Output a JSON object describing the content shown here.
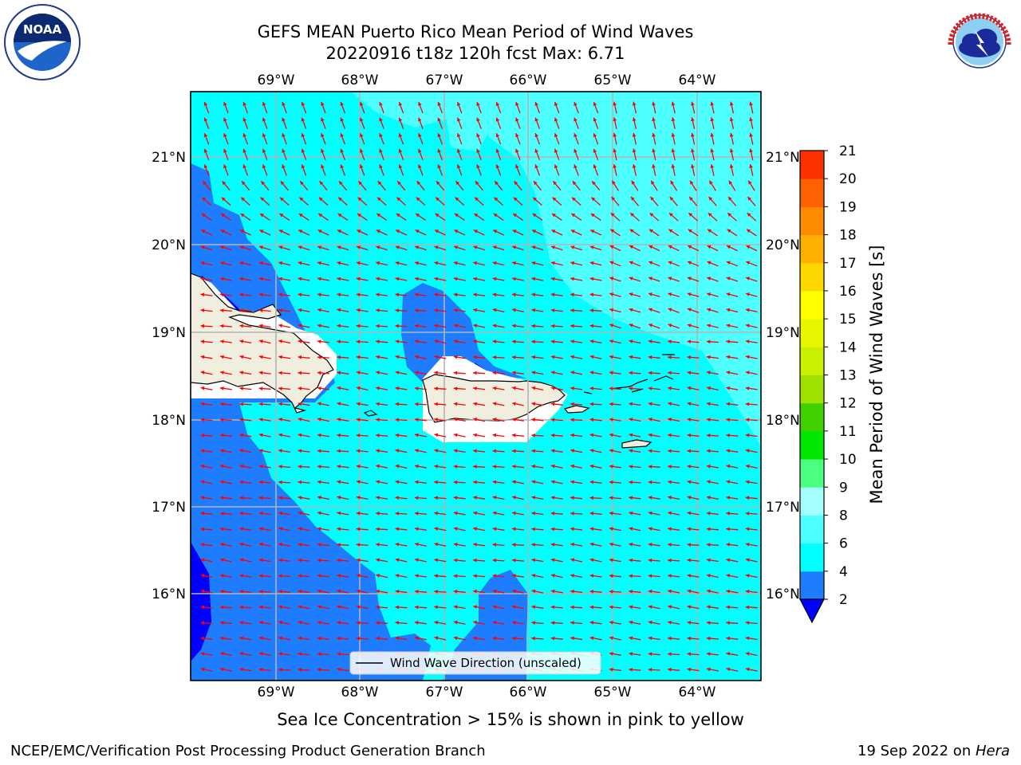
{
  "title": {
    "line1": "GEFS MEAN Puerto Rico Mean Period of Wind Waves",
    "line2": "20220916 t18z 120h fcst   Max: 6.71"
  },
  "logos": {
    "left": {
      "text": "NOAA",
      "ring_text": "NATIONAL OCEANIC AND ATMOSPHERIC ADMINISTRATION · U.S. DEPARTMENT OF COMMERCE"
    },
    "right": {
      "ring_text": "NATIONAL WEATHER SERVICE"
    }
  },
  "map": {
    "lon_labels": [
      "69°W",
      "68°W",
      "67°W",
      "66°W",
      "65°W",
      "64°W"
    ],
    "lat_labels": [
      "21°N",
      "20°N",
      "19°N",
      "18°N",
      "17°N",
      "16°N"
    ],
    "legend_label": "Wind Wave Direction (unscaled)",
    "colors": {
      "cyan": "#00ffff",
      "light_cyan": "#4dffff",
      "blue": "#1e7cff",
      "dark_blue": "#0000ff",
      "land": "#f0eedf",
      "arrow": "#ff0000"
    }
  },
  "colorbar": {
    "label": "Mean Period of Wind Waves [s]",
    "ticks": [
      "2",
      "4",
      "6",
      "8",
      "9",
      "10",
      "11",
      "12",
      "13",
      "14",
      "15",
      "16",
      "17",
      "18",
      "19",
      "20",
      "21"
    ],
    "colors": [
      "#1e7cff",
      "#00ffff",
      "#4dffff",
      "#a6ffff",
      "#4dff80",
      "#00e600",
      "#40d000",
      "#9ee000",
      "#c8f000",
      "#e6f500",
      "#ffff00",
      "#ffd700",
      "#ffb000",
      "#ff8c00",
      "#ff6000",
      "#ff3000",
      "#ff0000"
    ],
    "extend_color": "#0000ff"
  },
  "caption": "Sea Ice Concentration > 15% is shown in pink to yellow",
  "footer": {
    "left": "NCEP/EMC/Verification Post Processing Product Generation Branch",
    "right_prefix": "19 Sep 2022 on ",
    "right_italic": "Hera"
  }
}
